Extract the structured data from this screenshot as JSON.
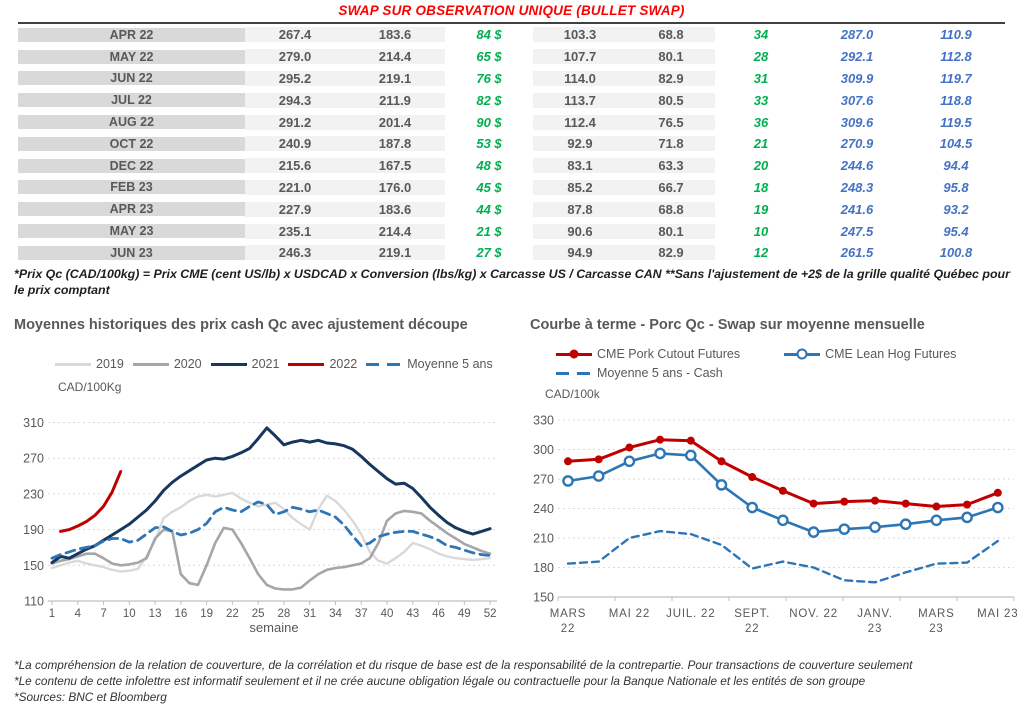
{
  "title": "SWAP SUR OBSERVATION UNIQUE (BULLET SWAP)",
  "table": {
    "rows": [
      [
        "APR 22",
        "267.4",
        "183.6",
        "84 $",
        "103.3",
        "68.8",
        "34",
        "287.0",
        "110.9"
      ],
      [
        "MAY 22",
        "279.0",
        "214.4",
        "65 $",
        "107.7",
        "80.1",
        "28",
        "292.1",
        "112.8"
      ],
      [
        "JUN 22",
        "295.2",
        "219.1",
        "76 $",
        "114.0",
        "82.9",
        "31",
        "309.9",
        "119.7"
      ],
      [
        "JUL 22",
        "294.3",
        "211.9",
        "82 $",
        "113.7",
        "80.5",
        "33",
        "307.6",
        "118.8"
      ],
      [
        "AUG 22",
        "291.2",
        "201.4",
        "90 $",
        "112.4",
        "76.5",
        "36",
        "309.6",
        "119.5"
      ],
      [
        "OCT 22",
        "240.9",
        "187.8",
        "53 $",
        "92.9",
        "71.8",
        "21",
        "270.9",
        "104.5"
      ],
      [
        "DEC 22",
        "215.6",
        "167.5",
        "48 $",
        "83.1",
        "63.3",
        "20",
        "244.6",
        "94.4"
      ],
      [
        "FEB 23",
        "221.0",
        "176.0",
        "45 $",
        "85.2",
        "66.7",
        "18",
        "248.3",
        "95.8"
      ],
      [
        "APR 23",
        "227.9",
        "183.6",
        "44 $",
        "87.8",
        "68.8",
        "19",
        "241.6",
        "93.2"
      ],
      [
        "MAY 23",
        "235.1",
        "214.4",
        "21 $",
        "90.6",
        "80.1",
        "10",
        "247.5",
        "95.4"
      ],
      [
        "JUN 23",
        "246.3",
        "219.1",
        "27 $",
        "94.9",
        "82.9",
        "12",
        "261.5",
        "100.8"
      ]
    ]
  },
  "table_note": "*Prix Qc (CAD/100kg) = Prix CME (cent US/lb) x USDCAD x Conversion (lbs/kg) x Carcasse US / Carcasse CAN **Sans l'ajustement de +2$ de la grille qualité Québec pour le prix comptant",
  "chart_data": [
    {
      "type": "line",
      "title": "Moyennes historiques des prix cash Qc avec ajustement découpe",
      "y_axis_label": "CAD/100Kg",
      "x_axis_label": "semaine",
      "ylim": [
        110,
        310
      ],
      "yticks": [
        110,
        150,
        190,
        230,
        270,
        310
      ],
      "x_ticks": [
        1,
        4,
        7,
        10,
        13,
        16,
        19,
        22,
        25,
        28,
        31,
        34,
        37,
        40,
        43,
        46,
        49,
        52
      ],
      "x_range": [
        1,
        52
      ],
      "grid": "dashed-horizontal",
      "legend_position": "top",
      "series": [
        {
          "name": "2019",
          "color": "#d9d9d9",
          "style": "solid",
          "width": 2.4,
          "x_start": 1,
          "values": [
            147,
            150,
            153,
            155,
            152,
            150,
            148,
            145,
            143,
            144,
            146,
            160,
            178,
            203,
            210,
            215,
            222,
            227,
            229,
            227,
            229,
            231,
            225,
            220,
            216,
            218,
            220,
            213,
            203,
            196,
            190,
            213,
            228,
            222,
            212,
            200,
            185,
            165,
            155,
            152,
            158,
            165,
            175,
            172,
            168,
            163,
            160,
            158,
            157,
            156,
            157,
            158
          ]
        },
        {
          "name": "2020",
          "color": "#a6a6a6",
          "style": "solid",
          "width": 2.6,
          "x_start": 1,
          "values": [
            152,
            155,
            157,
            160,
            163,
            163,
            158,
            152,
            150,
            151,
            153,
            158,
            180,
            190,
            188,
            140,
            130,
            128,
            150,
            175,
            192,
            190,
            175,
            158,
            140,
            128,
            124,
            123,
            123,
            125,
            133,
            140,
            145,
            147,
            148,
            150,
            152,
            158,
            175,
            200,
            208,
            211,
            210,
            208,
            200,
            193,
            186,
            180,
            174,
            170,
            166,
            163
          ]
        },
        {
          "name": "2021",
          "color": "#17375e",
          "style": "solid",
          "width": 3,
          "x_start": 1,
          "values": [
            153,
            160,
            158,
            163,
            168,
            172,
            178,
            184,
            190,
            196,
            204,
            212,
            222,
            234,
            243,
            250,
            256,
            262,
            268,
            270,
            269,
            272,
            276,
            281,
            292,
            304,
            295,
            285,
            288,
            290,
            288,
            290,
            287,
            286,
            284,
            280,
            272,
            263,
            255,
            247,
            241,
            242,
            236,
            226,
            215,
            206,
            198,
            192,
            188,
            185,
            188,
            191
          ]
        },
        {
          "name": "2022",
          "color": "#c00000",
          "style": "solid",
          "width": 3,
          "x_start": 2,
          "values": [
            188,
            190,
            194,
            199,
            206,
            216,
            232,
            255
          ]
        },
        {
          "name": "Moyenne 5 ans",
          "color": "#2e75b6",
          "style": "dashed",
          "width": 2.8,
          "x_start": 1,
          "values": [
            158,
            162,
            165,
            168,
            170,
            172,
            177,
            180,
            180,
            176,
            178,
            185,
            192,
            193,
            188,
            184,
            186,
            190,
            197,
            210,
            215,
            212,
            210,
            216,
            221,
            218,
            207,
            210,
            215,
            213,
            210,
            212,
            208,
            204,
            195,
            183,
            172,
            175,
            182,
            185,
            187,
            188,
            188,
            185,
            182,
            178,
            172,
            170,
            167,
            164,
            162,
            161
          ]
        }
      ]
    },
    {
      "type": "line",
      "title": "Courbe à terme - Porc Qc - Swap sur moyenne mensuelle",
      "y_axis_label": "CAD/100k",
      "ylim": [
        150,
        330
      ],
      "yticks": [
        150,
        180,
        210,
        240,
        270,
        300,
        330
      ],
      "x_labels": [
        [
          "MARS",
          "22"
        ],
        [
          "MAI 22"
        ],
        [
          "JUIL. 22"
        ],
        [
          "SEPT.",
          "22"
        ],
        [
          "NOV. 22"
        ],
        [
          "JANV.",
          "23"
        ],
        [
          "MARS",
          "23"
        ],
        [
          "MAI 23"
        ]
      ],
      "x_label_indices": [
        0,
        2,
        4,
        6,
        8,
        10,
        12,
        14
      ],
      "grid": "dashed-horizontal",
      "legend_position": "top",
      "series": [
        {
          "name": "CME Pork Cutout Futures",
          "color": "#c00000",
          "style": "solid",
          "width": 3,
          "marker": "filled-circle",
          "values": [
            288,
            290,
            302,
            310,
            309,
            288,
            272,
            258,
            245,
            247,
            248,
            245,
            242,
            244,
            256
          ]
        },
        {
          "name": "CME Lean Hog Futures",
          "color": "#2e75b6",
          "style": "solid",
          "width": 2.6,
          "marker": "open-circle",
          "values": [
            268,
            273,
            288,
            296,
            294,
            264,
            241,
            228,
            216,
            219,
            221,
            224,
            228,
            231,
            241
          ]
        },
        {
          "name": "Moyenne 5 ans - Cash",
          "color": "#2e75b6",
          "style": "dashed",
          "width": 2.4,
          "marker": "none",
          "values": [
            184,
            186,
            210,
            217,
            214,
            203,
            179,
            186,
            180,
            167,
            165,
            175,
            184,
            185,
            207
          ]
        }
      ]
    }
  ],
  "footer": {
    "lines": [
      "*La compréhension de la relation de couverture, de la corrélation et du risque de base est de la responsabilité de la contrepartie. Pour transactions de couverture seulement",
      "*Le contenu de cette infolettre est informatif seulement et il ne crée aucune obligation légale ou contractuelle pour la Banque Nationale et les entités de son groupe",
      "*Sources: BNC et Bloomberg"
    ]
  }
}
